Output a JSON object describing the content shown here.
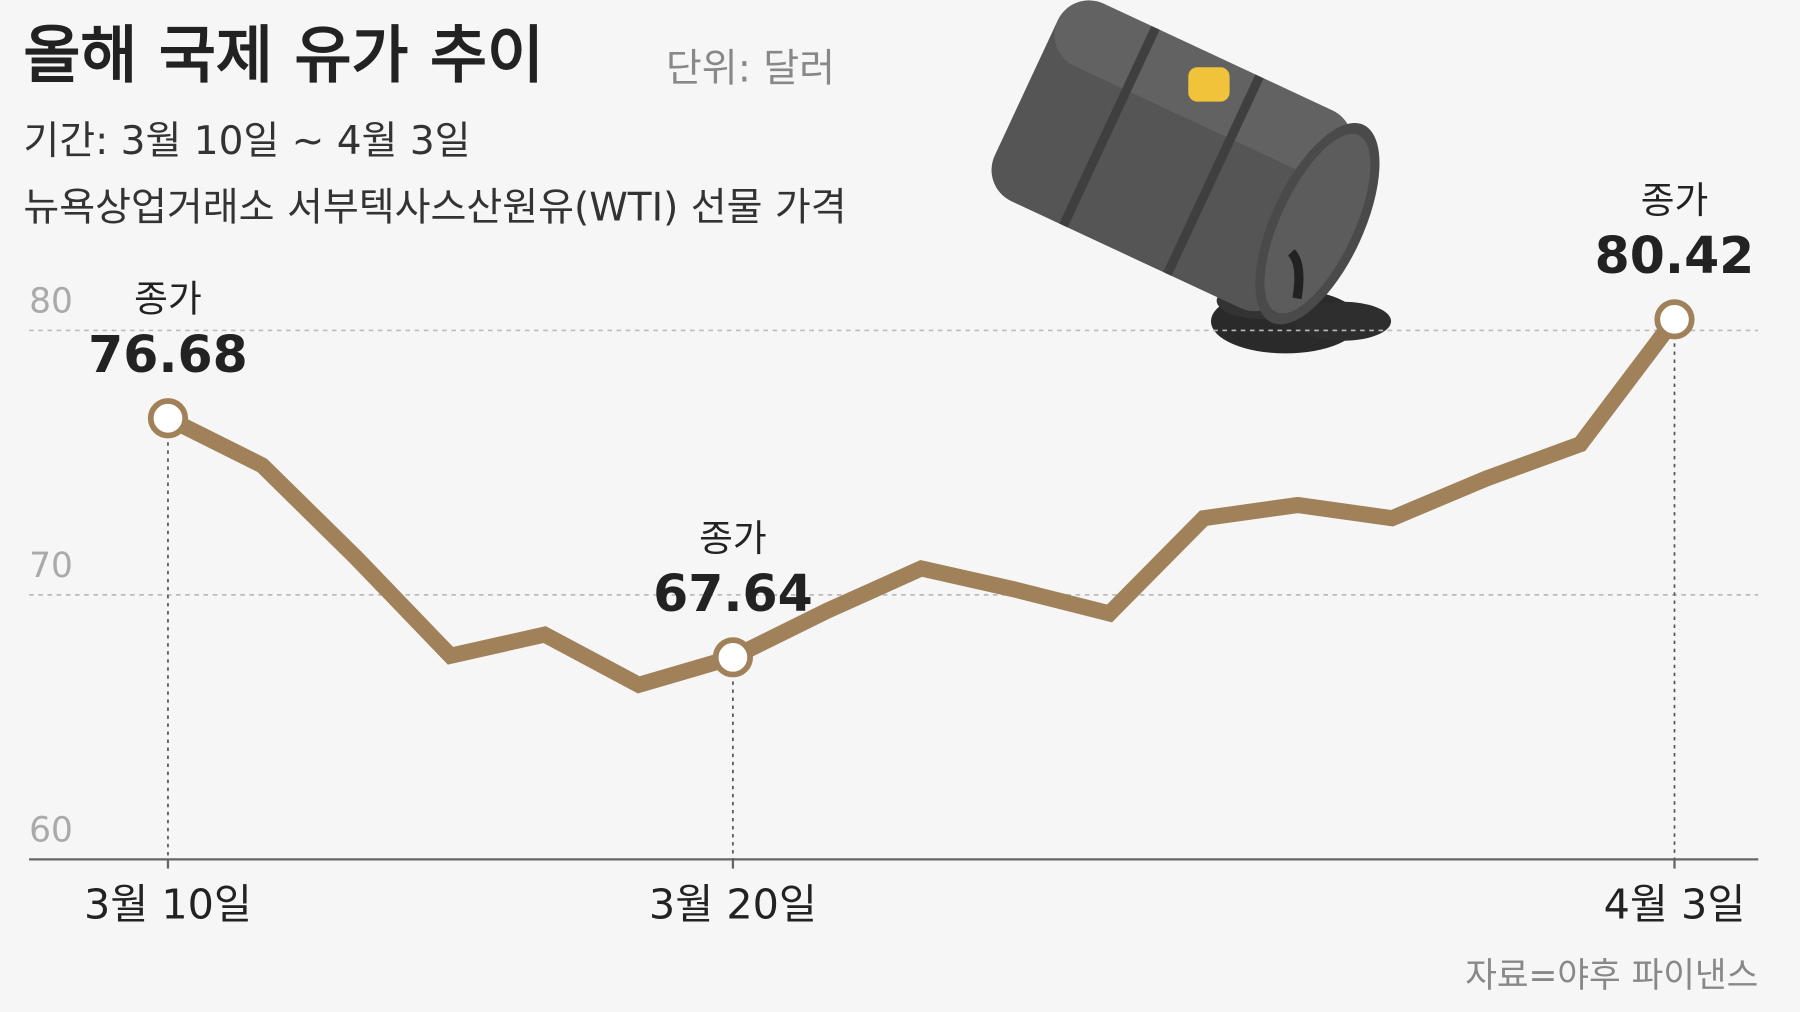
{
  "chart_data": {
    "type": "line",
    "title": "올해 국제 유가 추이",
    "unit": "단위: 달러",
    "subtitle": [
      "기간: 3월 10일 ~ 4월 3일",
      "뉴욕상업거래소 서부텍사스산원유(WTI) 선물 가격"
    ],
    "source": "자료=야후 파이낸스",
    "categories": [
      "3월 10일",
      null,
      null,
      null,
      null,
      null,
      "3월 20일",
      null,
      null,
      null,
      null,
      null,
      null,
      null,
      null,
      null,
      "4월 3일"
    ],
    "values": [
      76.68,
      74.9,
      71.4,
      67.7,
      68.5,
      66.6,
      67.64,
      69.4,
      71.0,
      70.2,
      69.3,
      72.9,
      73.4,
      72.9,
      74.4,
      75.7,
      80.42
    ],
    "value_labels": [
      "76.68",
      null,
      null,
      null,
      null,
      null,
      "67.64",
      null,
      null,
      null,
      null,
      null,
      null,
      null,
      null,
      null,
      "80.42"
    ],
    "annotation_labels": [
      "종가",
      null,
      null,
      null,
      null,
      null,
      "종가",
      null,
      null,
      null,
      null,
      null,
      null,
      null,
      null,
      null,
      "종가"
    ],
    "color": "#a0815a",
    "ylim": [
      60,
      80
    ],
    "yticks": [
      60,
      70,
      80
    ],
    "grid": true
  }
}
